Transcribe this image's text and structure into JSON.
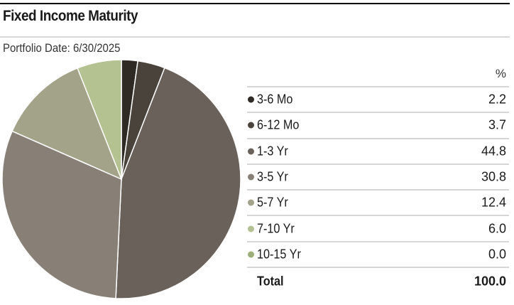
{
  "chart_data": {
    "type": "pie",
    "title": "Fixed Income Maturity",
    "subtitle": "Portfolio Date: 6/30/2025",
    "column_header": "%",
    "categories": [
      "3-6 Mo",
      "6-12 Mo",
      "1-3 Yr",
      "3-5 Yr",
      "5-7 Yr",
      "7-10 Yr",
      "10-15 Yr"
    ],
    "values": [
      2.2,
      3.7,
      44.8,
      30.8,
      12.4,
      6.0,
      0.0
    ],
    "value_labels": [
      "2.2",
      "3.7",
      "44.8",
      "30.8",
      "12.4",
      "6.0",
      "0.0"
    ],
    "colors": [
      "#2f2a24",
      "#4a433b",
      "#69615a",
      "#888076",
      "#a3a38a",
      "#b4c190",
      "#9daf78"
    ],
    "total_label": "Total",
    "total_value": "100.0"
  }
}
